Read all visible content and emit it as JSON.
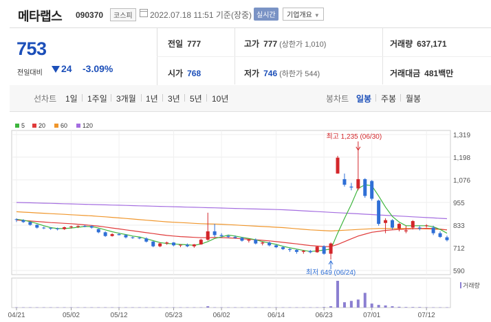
{
  "header": {
    "name": "메타랩스",
    "code": "090370",
    "market": "코스피",
    "datetime": "2022.07.18 11:51 기준(장중)",
    "realtime_label": "실시간",
    "corp_label": "기업개요"
  },
  "quote": {
    "price": "753",
    "change_label": "전일대비",
    "change": "24",
    "change_pct": "-3.09%",
    "prev_close_label": "전일",
    "prev_close": "777",
    "open_label": "시가",
    "open": "768",
    "high_label": "고가",
    "high": "777",
    "high_sub": "(상한가 1,010)",
    "low_label": "저가",
    "low": "746",
    "low_sub": "(하한가 544)",
    "volume_label": "거래량",
    "volume": "637,171",
    "value_label": "거래대금",
    "value": "481",
    "value_unit": "백만"
  },
  "tabs": {
    "line_label": "선차트",
    "periods": [
      "1일",
      "1주일",
      "3개월",
      "1년",
      "3년",
      "5년",
      "10년"
    ],
    "candle_label": "봉차트",
    "candles": [
      "일봉",
      "주봉",
      "월봉"
    ]
  },
  "colors": {
    "up": "#d3262a",
    "down": "#2f6fd6",
    "ma5": "#3db53d",
    "ma20": "#e03a3a",
    "ma60": "#f0962b",
    "ma120": "#a46de0",
    "vol": "#8b7fd1"
  },
  "chart_data": {
    "type": "candlestick",
    "legend": [
      "5",
      "20",
      "60",
      "120"
    ],
    "y_ticks": [
      "1,319",
      "1,198",
      "1,076",
      "955",
      "833",
      "712",
      "590"
    ],
    "ylim": [
      590,
      1319
    ],
    "x_ticks": [
      "04/21",
      "05/02",
      "05/12",
      "05/23",
      "06/02",
      "06/14",
      "06/23",
      "07/01",
      "07/12"
    ],
    "high_annotation": "최고 1,235 (06/30)",
    "low_annotation": "최저 649 (06/24)",
    "volume_label": "거래량",
    "candles": [
      [
        865,
        870,
        850,
        862
      ],
      [
        860,
        865,
        845,
        850
      ],
      [
        850,
        852,
        830,
        835
      ],
      [
        835,
        838,
        815,
        820
      ],
      [
        820,
        825,
        812,
        818
      ],
      [
        818,
        822,
        808,
        815
      ],
      [
        815,
        820,
        805,
        812
      ],
      [
        812,
        825,
        808,
        822
      ],
      [
        822,
        830,
        815,
        826
      ],
      [
        826,
        832,
        818,
        829
      ],
      [
        829,
        834,
        822,
        828
      ],
      [
        828,
        832,
        815,
        820
      ],
      [
        812,
        815,
        790,
        795
      ],
      [
        795,
        800,
        770,
        775
      ],
      [
        775,
        790,
        772,
        785
      ],
      [
        785,
        792,
        778,
        780
      ],
      [
        780,
        784,
        762,
        768
      ],
      [
        768,
        772,
        760,
        766
      ],
      [
        766,
        770,
        758,
        762
      ],
      [
        762,
        768,
        740,
        745
      ],
      [
        745,
        748,
        715,
        720
      ],
      [
        720,
        740,
        715,
        735
      ],
      [
        735,
        745,
        728,
        740
      ],
      [
        740,
        742,
        720,
        725
      ],
      [
        725,
        730,
        715,
        728
      ],
      [
        728,
        735,
        715,
        720
      ],
      [
        720,
        732,
        712,
        730
      ],
      [
        730,
        760,
        728,
        755
      ],
      [
        755,
        900,
        750,
        800
      ],
      [
        800,
        840,
        770,
        780
      ],
      [
        780,
        790,
        768,
        775
      ],
      [
        775,
        782,
        765,
        770
      ],
      [
        770,
        778,
        760,
        765
      ],
      [
        765,
        770,
        745,
        750
      ],
      [
        750,
        760,
        740,
        755
      ],
      [
        755,
        762,
        730,
        735
      ],
      [
        735,
        745,
        725,
        740
      ],
      [
        740,
        745,
        720,
        725
      ],
      [
        725,
        730,
        710,
        715
      ],
      [
        715,
        720,
        700,
        705
      ],
      [
        705,
        710,
        690,
        700
      ],
      [
        700,
        705,
        680,
        690
      ],
      [
        690,
        700,
        680,
        695
      ],
      [
        695,
        700,
        682,
        688
      ],
      [
        688,
        720,
        685,
        718
      ],
      [
        720,
        725,
        675,
        680
      ],
      [
        680,
        740,
        649,
        735
      ],
      [
        1110,
        1205,
        1110,
        1195
      ],
      [
        1080,
        1110,
        1040,
        1050
      ],
      [
        1040,
        1060,
        1020,
        1035
      ],
      [
        1030,
        1235,
        1020,
        1080
      ],
      [
        1080,
        1085,
        980,
        990
      ],
      [
        1070,
        1075,
        965,
        975
      ],
      [
        965,
        970,
        830,
        840
      ],
      [
        845,
        870,
        790,
        860
      ],
      [
        860,
        865,
        810,
        820
      ],
      [
        815,
        845,
        800,
        840
      ],
      [
        800,
        830,
        790,
        805
      ],
      [
        820,
        860,
        810,
        855
      ],
      [
        820,
        830,
        805,
        815
      ],
      [
        830,
        838,
        820,
        832
      ],
      [
        820,
        830,
        780,
        790
      ],
      [
        790,
        800,
        765,
        770
      ],
      [
        768,
        777,
        746,
        753
      ]
    ],
    "ma5": [
      865,
      860,
      852,
      842,
      830,
      820,
      815,
      815,
      818,
      822,
      826,
      826,
      818,
      808,
      798,
      790,
      783,
      775,
      770,
      760,
      750,
      740,
      735,
      733,
      730,
      728,
      725,
      732,
      745,
      762,
      770,
      780,
      775,
      768,
      762,
      755,
      745,
      738,
      730,
      720,
      712,
      705,
      698,
      692,
      695,
      700,
      705,
      790,
      870,
      945,
      1030,
      1050,
      1045,
      990,
      930,
      880,
      850,
      830,
      830,
      830,
      830,
      825,
      810,
      790
    ],
    "ma20": [
      860,
      858,
      856,
      853,
      850,
      847,
      845,
      843,
      841,
      838,
      835,
      832,
      828,
      823,
      818,
      813,
      808,
      803,
      798,
      793,
      788,
      783,
      778,
      775,
      772,
      770,
      768,
      766,
      766,
      767,
      766,
      765,
      763,
      760,
      758,
      755,
      752,
      749,
      745,
      741,
      737,
      733,
      728,
      724,
      721,
      719,
      718,
      730,
      745,
      760,
      775,
      785,
      795,
      800,
      805,
      808,
      810,
      812,
      814,
      815,
      816,
      815,
      812,
      808
    ],
    "ma60": [
      905,
      903,
      901,
      899,
      897,
      895,
      893,
      891,
      889,
      887,
      885,
      883,
      880,
      878,
      875,
      872,
      869,
      866,
      863,
      860,
      857,
      854,
      851,
      849,
      847,
      845,
      843,
      841,
      840,
      839,
      838,
      836,
      834,
      832,
      830,
      828,
      826,
      824,
      822,
      820,
      817,
      814,
      811,
      808,
      806,
      804,
      802,
      804,
      806,
      808,
      810,
      812,
      814,
      815,
      815,
      815,
      815,
      815,
      815,
      814,
      813,
      812,
      810,
      808
    ],
    "ma120": [
      955,
      954,
      953,
      952,
      951,
      950,
      949,
      948,
      947,
      946,
      945,
      944,
      943,
      942,
      941,
      940,
      939,
      938,
      937,
      936,
      935,
      934,
      933,
      932,
      931,
      930,
      929,
      928,
      927,
      926,
      925,
      924,
      923,
      922,
      921,
      920,
      919,
      918,
      917,
      916,
      914,
      912,
      910,
      908,
      906,
      904,
      902,
      900,
      898,
      896,
      894,
      892,
      890,
      888,
      886,
      884,
      882,
      880,
      878,
      876,
      874,
      872,
      870,
      868
    ],
    "volume": [
      0.01,
      0.01,
      0.01,
      0.01,
      0.01,
      0.01,
      0.01,
      0.01,
      0.01,
      0.01,
      0.01,
      0.01,
      0.01,
      0.01,
      0.01,
      0.01,
      0.01,
      0.01,
      0.01,
      0.01,
      0.01,
      0.01,
      0.01,
      0.01,
      0.01,
      0.01,
      0.01,
      0.01,
      0.05,
      0.01,
      0.01,
      0.01,
      0.01,
      0.01,
      0.01,
      0.01,
      0.01,
      0.01,
      0.01,
      0.01,
      0.01,
      0.01,
      0.01,
      0.01,
      0.01,
      0.02,
      0.05,
      1.0,
      0.2,
      0.25,
      0.3,
      0.55,
      0.15,
      0.1,
      0.08,
      0.05,
      0.03,
      0.02,
      0.02,
      0.02,
      0.01,
      0.01,
      0.01,
      0.01
    ]
  }
}
